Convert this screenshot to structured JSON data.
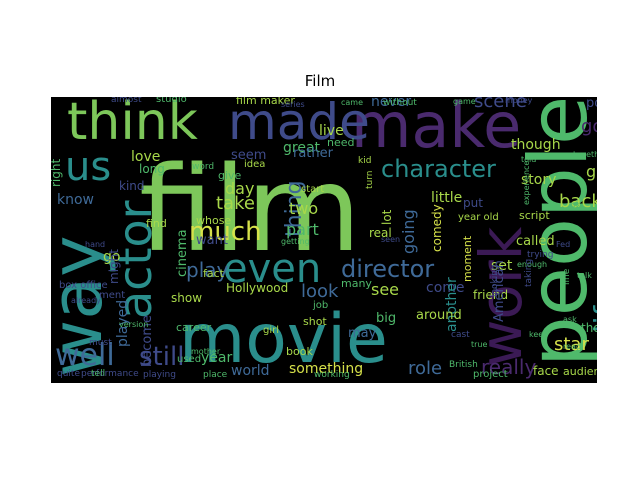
{
  "figure": {
    "title": "Film"
  },
  "palette": {
    "background": "#ffffff",
    "cloud_background": "#000000",
    "green_light": "#7dc75a",
    "green": "#4fb96b",
    "teal": "#2a8e8c",
    "blue": "#3f6a98",
    "indigo": "#3f4b8a",
    "purple": "#4a2a6e",
    "dark_purple": "#3b1a55",
    "yellow": "#d6e14a",
    "lime": "#a8d84a"
  },
  "wordcloud": {
    "words": [
      {
        "text": "film",
        "color": "#7dc75a"
      },
      {
        "text": "movie",
        "color": "#2a8e8c"
      },
      {
        "text": "people",
        "color": "#4fb96b"
      },
      {
        "text": "make",
        "color": "#4a2a6e"
      },
      {
        "text": "think",
        "color": "#7dc75a"
      },
      {
        "text": "made",
        "color": "#3f4b8a"
      },
      {
        "text": "way",
        "color": "#2a8e8c"
      },
      {
        "text": "work",
        "color": "#3b1a55"
      },
      {
        "text": "actor",
        "color": "#2a8e8c"
      },
      {
        "text": "even",
        "color": "#2a8e8c"
      },
      {
        "text": "us",
        "color": "#2a8e8c"
      },
      {
        "text": "character",
        "color": "#2a8e8c"
      },
      {
        "text": "director",
        "color": "#3f6a98"
      },
      {
        "text": "much",
        "color": "#d6e14a"
      },
      {
        "text": "well",
        "color": "#3f6a98"
      },
      {
        "text": "life",
        "color": "#2a8e8c"
      },
      {
        "text": "scene",
        "color": "#3f4b8a"
      },
      {
        "text": "play",
        "color": "#3f6a98"
      },
      {
        "text": "thing",
        "color": "#3f6a98"
      },
      {
        "text": "still",
        "color": "#3f4b8a"
      },
      {
        "text": "really",
        "color": "#4a2a6e"
      },
      {
        "text": "good",
        "color": "#4a2a6e"
      },
      {
        "text": "look",
        "color": "#3f6a98"
      },
      {
        "text": "take",
        "color": "#a8d84a"
      },
      {
        "text": "part",
        "color": "#4fb96b"
      },
      {
        "text": "role",
        "color": "#3f6a98"
      },
      {
        "text": "back",
        "color": "#a8d84a"
      },
      {
        "text": "star",
        "color": "#d6e14a"
      },
      {
        "text": "day",
        "color": "#a8d84a"
      },
      {
        "text": "two",
        "color": "#a8d84a"
      },
      {
        "text": "going",
        "color": "#3f6a98"
      },
      {
        "text": "story",
        "color": "#a8d84a"
      },
      {
        "text": "world",
        "color": "#3f6a98"
      },
      {
        "text": "something",
        "color": "#d6e14a"
      },
      {
        "text": "know",
        "color": "#3f6a98"
      },
      {
        "text": "love",
        "color": "#a8d84a"
      },
      {
        "text": "got",
        "color": "#a8d84a"
      },
      {
        "text": "set",
        "color": "#a8d84a"
      },
      {
        "text": "never",
        "color": "#3f6a98"
      },
      {
        "text": "played",
        "color": "#3f6a98"
      },
      {
        "text": "always",
        "color": "#3f4b8a"
      },
      {
        "text": "see",
        "color": "#a8d84a"
      },
      {
        "text": "come",
        "color": "#3f4b8a"
      },
      {
        "text": "another",
        "color": "#2a8e8c"
      },
      {
        "text": "great",
        "color": "#4fb96b"
      },
      {
        "text": "little",
        "color": "#a8d84a"
      },
      {
        "text": "though",
        "color": "#a8d84a"
      },
      {
        "text": "called",
        "color": "#a8d84a"
      },
      {
        "text": "show",
        "color": "#a8d84a"
      },
      {
        "text": "year",
        "color": "#4fb96b"
      },
      {
        "text": "go",
        "color": "#a8d84a"
      },
      {
        "text": "want",
        "color": "#3f4b8a"
      },
      {
        "text": "become",
        "color": "#3f4b8a"
      },
      {
        "text": "Hollywood",
        "color": "#a8d84a"
      },
      {
        "text": "cinema",
        "color": "#4fb96b"
      },
      {
        "text": "around",
        "color": "#a8d84a"
      },
      {
        "text": "friend",
        "color": "#a8d84a"
      },
      {
        "text": "audience",
        "color": "#a8d84a"
      },
      {
        "text": "yet",
        "color": "#a8d84a"
      },
      {
        "text": "lot",
        "color": "#a8d84a"
      },
      {
        "text": "comedy",
        "color": "#d6e14a"
      },
      {
        "text": "might",
        "color": "#3f4b8a"
      },
      {
        "text": "kind",
        "color": "#3f4b8a"
      },
      {
        "text": "may",
        "color": "#3f6a98"
      },
      {
        "text": "big",
        "color": "#4fb96b"
      },
      {
        "text": "many",
        "color": "#4fb96b"
      },
      {
        "text": "rather",
        "color": "#3f6a98"
      },
      {
        "text": "live",
        "color": "#a8d84a"
      },
      {
        "text": "point",
        "color": "#3f4b8a"
      },
      {
        "text": "moment",
        "color": "#d6e14a"
      },
      {
        "text": "thought",
        "color": "#4fb96b"
      },
      {
        "text": "film maker",
        "color": "#a8d84a"
      },
      {
        "text": "find",
        "color": "#a8d84a"
      },
      {
        "text": "long",
        "color": "#4fb96b"
      },
      {
        "text": "right",
        "color": "#4fb96b"
      },
      {
        "text": "face",
        "color": "#a8d84a"
      },
      {
        "text": "book",
        "color": "#a8d84a"
      },
      {
        "text": "shot",
        "color": "#a8d84a"
      },
      {
        "text": "need",
        "color": "#4fb96b"
      },
      {
        "text": "real",
        "color": "#a8d84a"
      },
      {
        "text": "whose",
        "color": "#a8d84a"
      },
      {
        "text": "put",
        "color": "#3f4b8a"
      },
      {
        "text": "fact",
        "color": "#a8d84a"
      },
      {
        "text": "give",
        "color": "#4fb96b"
      },
      {
        "text": "seem",
        "color": "#3f4b8a"
      },
      {
        "text": "start",
        "color": "#a8d84a"
      },
      {
        "text": "script",
        "color": "#a8d84a"
      },
      {
        "text": "idea",
        "color": "#a8d84a"
      },
      {
        "text": "used",
        "color": "#4fb96b"
      },
      {
        "text": "word",
        "color": "#4fb96b"
      },
      {
        "text": "girl",
        "color": "#a8d84a"
      },
      {
        "text": "job",
        "color": "#4fb96b"
      },
      {
        "text": "kid",
        "color": "#a8d84a"
      },
      {
        "text": "studio",
        "color": "#4fb96b"
      },
      {
        "text": "performance",
        "color": "#3f4b8a"
      },
      {
        "text": "box office",
        "color": "#3f4b8a"
      },
      {
        "text": "playing",
        "color": "#3f4b8a"
      },
      {
        "text": "project",
        "color": "#4fb96b"
      },
      {
        "text": "place",
        "color": "#4fb96b"
      },
      {
        "text": "working",
        "color": "#4fb96b"
      },
      {
        "text": "year old",
        "color": "#a8d84a"
      },
      {
        "text": "career",
        "color": "#4fb96b"
      },
      {
        "text": "ment",
        "color": "#3f4b8a"
      },
      {
        "text": "almost",
        "color": "#3f4b8a"
      },
      {
        "text": "must",
        "color": "#3f4b8a"
      },
      {
        "text": "tell",
        "color": "#4fb96b"
      },
      {
        "text": "American",
        "color": "#3f4b8a"
      },
      {
        "text": "cast",
        "color": "#3f4b8a"
      },
      {
        "text": "version",
        "color": "#4fb96b"
      },
      {
        "text": "without",
        "color": "#4fb96b"
      },
      {
        "text": "together",
        "color": "#4fb96b"
      },
      {
        "text": "enough",
        "color": "#4fb96b"
      },
      {
        "text": "hand",
        "color": "#3f4b8a"
      },
      {
        "text": "line",
        "color": "#4fb96b"
      },
      {
        "text": "looking",
        "color": "#3f4b8a"
      },
      {
        "text": "quite",
        "color": "#3f4b8a"
      },
      {
        "text": "mother",
        "color": "#4fb96b"
      },
      {
        "text": "Fed",
        "color": "#3f4b8a"
      },
      {
        "text": "ask",
        "color": "#4fb96b"
      },
      {
        "text": "keep",
        "color": "#4fb96b"
      },
      {
        "text": "talk",
        "color": "#4fb96b"
      },
      {
        "text": "experience",
        "color": "#4fb96b"
      },
      {
        "text": "true",
        "color": "#4fb96b"
      },
      {
        "text": "game",
        "color": "#4fb96b"
      },
      {
        "text": "money",
        "color": "#3f4b8a"
      },
      {
        "text": "taking",
        "color": "#3f4b8a"
      },
      {
        "text": "British",
        "color": "#4fb96b"
      },
      {
        "text": "already",
        "color": "#3f4b8a"
      },
      {
        "text": "getting",
        "color": "#4fb96b"
      },
      {
        "text": "series",
        "color": "#3f4b8a"
      },
      {
        "text": "read",
        "color": "#4fb96b"
      },
      {
        "text": "trying",
        "color": "#3f4b8a"
      },
      {
        "text": "latter",
        "color": "#3f4b8a"
      },
      {
        "text": "seen",
        "color": "#3f4b8a"
      },
      {
        "text": "turn",
        "color": "#a8d84a"
      },
      {
        "text": "ok",
        "color": "#4fb96b"
      },
      {
        "text": "came",
        "color": "#4fb96b"
      },
      {
        "text": "told",
        "color": "#4fb96b"
      }
    ]
  }
}
